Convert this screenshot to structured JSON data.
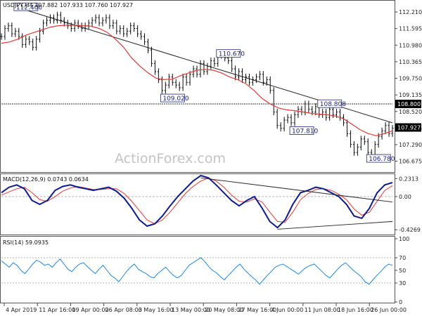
{
  "header": {
    "price_label": "USDJPY,H4  107.882 107.933 107.760 107.927"
  },
  "watermark": "ActionForex.com",
  "chart_data": [
    {
      "type": "candlestick",
      "title": "USDJPY,H4  107.882 107.933 107.760 107.927",
      "ylim": [
        106.3,
        112.55
      ],
      "y_ticks": [
        "112.210",
        "111.595",
        "110.980",
        "110.365",
        "109.750",
        "109.135",
        "108.520",
        "107.905",
        "107.290",
        "106.675"
      ],
      "y_tick_values": [
        112.21,
        111.595,
        110.98,
        110.365,
        109.75,
        109.135,
        108.52,
        107.905,
        107.29,
        106.675
      ],
      "close_series": [
        111.3,
        111.6,
        111.7,
        111.4,
        111.5,
        111.3,
        111.0,
        111.2,
        111.1,
        110.9,
        111.2,
        111.5,
        111.8,
        111.9,
        112.0,
        111.9,
        112.1,
        111.9,
        111.8,
        111.7,
        111.6,
        111.8,
        111.7,
        111.6,
        111.7,
        111.8,
        111.9,
        112.0,
        111.8,
        111.9,
        112.0,
        111.7,
        111.8,
        111.5,
        111.6,
        111.4,
        111.5,
        111.7,
        111.6,
        111.4,
        111.3,
        111.1,
        110.8,
        110.3,
        110.0,
        109.7,
        109.3,
        109.5,
        109.8,
        109.6,
        109.5,
        109.4,
        109.8,
        109.6,
        109.9,
        110.1,
        109.9,
        110.3,
        110.0,
        110.2,
        110.4,
        110.3,
        110.7,
        110.6,
        110.5,
        110.4,
        110.1,
        109.8,
        110.0,
        109.7,
        109.8,
        109.6,
        109.7,
        109.8,
        109.9,
        109.6,
        109.7,
        109.3,
        108.5,
        108.0,
        107.9,
        108.2,
        108.3,
        108.1,
        108.4,
        108.6,
        108.5,
        108.8,
        108.6,
        108.5,
        108.7,
        108.4,
        108.5,
        108.3,
        108.6,
        108.4,
        108.5,
        108.3,
        108.1,
        107.7,
        107.3,
        107.0,
        107.2,
        107.5,
        107.4,
        107.0,
        106.9,
        107.3,
        107.6,
        107.8,
        108.0,
        107.7,
        107.9
      ],
      "ma_series": [
        111.05,
        111.1,
        111.2,
        111.35,
        111.45,
        111.55,
        111.65,
        111.7,
        111.72,
        111.72,
        111.7,
        111.68,
        111.6,
        111.45,
        111.2,
        110.9,
        110.5,
        110.2,
        109.95,
        109.75,
        109.7,
        109.72,
        109.85,
        109.95,
        110.05,
        110.08,
        110.05,
        109.95,
        109.8,
        109.7,
        109.55,
        109.3,
        109.0,
        108.8,
        108.65,
        108.58,
        108.55,
        108.5,
        108.45,
        108.42,
        108.4,
        108.35,
        108.25,
        108.05,
        107.85,
        107.7,
        107.62,
        107.7,
        107.8
      ],
      "annotations": [
        {
          "text": "112.400",
          "x": 4,
          "y": 112.4
        },
        {
          "text": "110.670",
          "x": 62,
          "y": 110.67
        },
        {
          "text": "109.020",
          "x": 46,
          "y": 109.02
        },
        {
          "text": "108.808",
          "x": 91,
          "y": 108.808
        },
        {
          "text": "107.810",
          "x": 83,
          "y": 107.81
        },
        {
          "text": "106.780",
          "x": 105,
          "y": 106.78
        }
      ],
      "right_labels": [
        {
          "text": "108.800",
          "y": 108.8,
          "color": "#000000"
        },
        {
          "text": "107.927",
          "y": 107.927,
          "color": "#000000"
        }
      ],
      "trendline": {
        "from": [
          4,
          112.4
        ],
        "to": [
          112,
          108.1
        ]
      },
      "hline": 108.8,
      "colors": {
        "price": "#0a0a0a",
        "ma": "#e53935",
        "line": "#222222"
      }
    },
    {
      "type": "line",
      "title": "MACD(12,26,9) 0.0743 0.0634",
      "ylim": [
        -0.47,
        0.27
      ],
      "y_ticks": [
        "0.2313",
        "0.00",
        "-0.4269"
      ],
      "y_tick_values": [
        0.2313,
        0.0,
        -0.4269
      ],
      "macd_series": [
        0.05,
        0.12,
        0.15,
        0.1,
        -0.05,
        -0.1,
        -0.05,
        0.08,
        0.13,
        0.15,
        0.12,
        0.1,
        0.08,
        0.1,
        0.12,
        0.07,
        -0.02,
        -0.15,
        -0.3,
        -0.38,
        -0.35,
        -0.25,
        -0.12,
        0.0,
        0.1,
        0.2,
        0.27,
        0.24,
        0.15,
        0.05,
        -0.05,
        -0.12,
        -0.05,
        0.0,
        -0.15,
        -0.32,
        -0.4,
        -0.3,
        -0.1,
        0.05,
        0.08,
        0.12,
        0.1,
        0.05,
        0.0,
        -0.1,
        -0.25,
        -0.28,
        -0.15,
        0.05,
        0.15,
        0.18
      ],
      "signal_series": [
        0.02,
        0.06,
        0.1,
        0.12,
        0.05,
        -0.04,
        -0.06,
        0.0,
        0.07,
        0.11,
        0.13,
        0.11,
        0.09,
        0.09,
        0.1,
        0.1,
        0.04,
        -0.06,
        -0.18,
        -0.3,
        -0.35,
        -0.3,
        -0.2,
        -0.08,
        0.04,
        0.13,
        0.2,
        0.24,
        0.2,
        0.12,
        0.02,
        -0.06,
        -0.07,
        -0.03,
        -0.07,
        -0.2,
        -0.32,
        -0.33,
        -0.2,
        -0.04,
        0.04,
        0.09,
        0.1,
        0.08,
        0.03,
        -0.04,
        -0.16,
        -0.24,
        -0.2,
        -0.06,
        0.08,
        0.14
      ],
      "lines": [
        {
          "from": [
            26,
            0.24
          ],
          "to": [
            51,
            -0.07
          ]
        },
        {
          "from": [
            36,
            -0.42
          ],
          "to": [
            51,
            -0.32
          ]
        }
      ],
      "colors": {
        "macd": "#0d1a8f",
        "signal": "#e53935"
      }
    },
    {
      "type": "line",
      "title": "RSI(14) 59.0935",
      "ylim": [
        0,
        100
      ],
      "y_ticks": [
        "100",
        "70",
        "50",
        "30",
        "0"
      ],
      "y_tick_values": [
        100,
        70,
        50,
        30,
        0
      ],
      "series_values": [
        65,
        60,
        55,
        62,
        58,
        50,
        45,
        52,
        60,
        66,
        63,
        58,
        60,
        55,
        62,
        68,
        60,
        52,
        48,
        55,
        60,
        62,
        56,
        50,
        45,
        52,
        58,
        50,
        42,
        38,
        32,
        40,
        48,
        55,
        60,
        52,
        48,
        45,
        40,
        38,
        45,
        50,
        55,
        48,
        42,
        38,
        42,
        50,
        58,
        62,
        66,
        70,
        64,
        56,
        50,
        46,
        40,
        35,
        42,
        48,
        55,
        60,
        52,
        46,
        40,
        35,
        28,
        35,
        42,
        48,
        55,
        58,
        60,
        56,
        52,
        48,
        44,
        50,
        55,
        58,
        60,
        54,
        48,
        42,
        38,
        45,
        52,
        58,
        62,
        56,
        50,
        45,
        40,
        32,
        28,
        35,
        42,
        48,
        55,
        60,
        58
      ],
      "guides": [
        70,
        30
      ],
      "colors": {
        "rsi": "#1e88e5"
      }
    }
  ],
  "x_axis": {
    "labels": [
      "4 Apr 2019",
      "11 Apr 16:00",
      "19 Apr 00:00",
      "26 Apr 08:00",
      "3 May 16:00",
      "13 May 00:00",
      "20 May 08:00",
      "27 May 16:00",
      "4 Jun 00:00",
      "11 Jun 08:00",
      "18 Jun 16:00",
      "26 Jun 00:00"
    ]
  }
}
